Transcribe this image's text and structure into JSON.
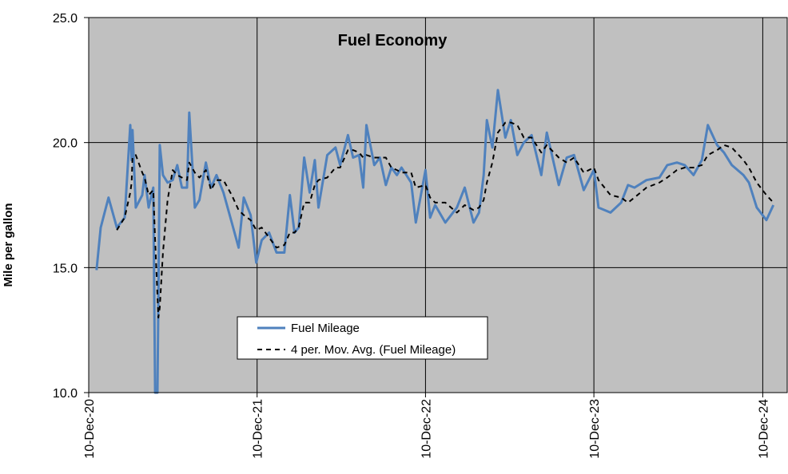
{
  "chart_data": {
    "type": "line",
    "title": "Fuel Economy",
    "ylabel": "Mile per gallon",
    "x": [
      "2020-12-27",
      "2021-01-05",
      "2021-01-22",
      "2021-02-09",
      "2021-02-26",
      "2021-03-10",
      "2021-03-13",
      "2021-03-15",
      "2021-03-22",
      "2021-04-05",
      "2021-04-10",
      "2021-04-19",
      "2021-04-29",
      "2021-05-03",
      "2021-05-08",
      "2021-05-10",
      "2021-05-13",
      "2021-05-20",
      "2021-05-30",
      "2021-06-10",
      "2021-06-20",
      "2021-06-30",
      "2021-07-11",
      "2021-07-16",
      "2021-07-28",
      "2021-08-07",
      "2021-08-21",
      "2021-09-01",
      "2021-09-13",
      "2021-09-28",
      "2021-10-16",
      "2021-10-31",
      "2021-11-11",
      "2021-11-26",
      "2021-12-08",
      "2021-12-20",
      "2022-01-05",
      "2022-01-21",
      "2022-02-07",
      "2022-02-19",
      "2022-03-01",
      "2022-03-10",
      "2022-03-22",
      "2022-04-03",
      "2022-04-14",
      "2022-04-22",
      "2022-05-11",
      "2022-05-29",
      "2022-06-08",
      "2022-06-25",
      "2022-07-06",
      "2022-07-19",
      "2022-07-28",
      "2022-08-04",
      "2022-08-21",
      "2022-09-02",
      "2022-09-15",
      "2022-09-27",
      "2022-10-09",
      "2022-10-19",
      "2022-11-09",
      "2022-11-19",
      "2022-12-10",
      "2022-12-20",
      "2022-12-31",
      "2023-01-22",
      "2023-02-16",
      "2023-03-05",
      "2023-03-24",
      "2023-04-05",
      "2023-04-15",
      "2023-04-22",
      "2023-05-04",
      "2023-05-16",
      "2023-06-01",
      "2023-06-13",
      "2023-06-27",
      "2023-07-11",
      "2023-07-28",
      "2023-08-18",
      "2023-08-30",
      "2023-09-25",
      "2023-10-12",
      "2023-10-28",
      "2023-11-18",
      "2023-12-10",
      "2023-12-20",
      "2024-01-15",
      "2024-02-07",
      "2024-02-22",
      "2024-03-07",
      "2024-04-02",
      "2024-04-30",
      "2024-05-17",
      "2024-06-07",
      "2024-06-24",
      "2024-07-13",
      "2024-07-31",
      "2024-08-13",
      "2024-09-02",
      "2024-09-17",
      "2024-10-04",
      "2024-10-29",
      "2024-11-10",
      "2024-11-27",
      "2024-12-18",
      "2025-01-02"
    ],
    "series": [
      {
        "name": "Fuel Mileage",
        "color": "#4f81bd",
        "values": [
          14.9,
          16.6,
          17.8,
          16.6,
          17.0,
          20.7,
          19.3,
          20.5,
          17.4,
          17.9,
          18.7,
          17.4,
          18.2,
          10.0,
          10.0,
          13.8,
          19.9,
          18.7,
          18.4,
          18.5,
          19.1,
          18.2,
          18.2,
          21.2,
          17.4,
          17.7,
          19.2,
          18.2,
          18.7,
          18.0,
          16.8,
          15.8,
          17.8,
          17.1,
          15.2,
          16.1,
          16.4,
          15.6,
          15.6,
          17.9,
          16.4,
          16.6,
          19.4,
          18.0,
          19.3,
          17.4,
          19.5,
          19.8,
          19.1,
          20.3,
          19.4,
          19.5,
          18.2,
          20.7,
          19.1,
          19.4,
          18.3,
          19.0,
          18.7,
          19.0,
          18.4,
          16.8,
          18.9,
          17.0,
          17.5,
          16.8,
          17.4,
          18.2,
          16.8,
          17.2,
          18.7,
          20.9,
          19.8,
          22.1,
          20.2,
          20.9,
          19.5,
          20.0,
          20.3,
          18.7,
          20.4,
          18.3,
          19.4,
          19.5,
          18.1,
          18.9,
          17.4,
          17.2,
          17.6,
          18.3,
          18.2,
          18.5,
          18.6,
          19.1,
          19.2,
          19.1,
          18.7,
          19.3,
          20.7,
          19.9,
          19.6,
          19.1,
          18.7,
          18.4,
          17.4,
          16.9,
          17.5
        ]
      },
      {
        "name": "4 per. Mov. Avg. (Fuel Mileage)",
        "color": "#000000",
        "dashed": true,
        "values": [
          null,
          null,
          null,
          16.5,
          17.0,
          18.0,
          18.4,
          19.4,
          19.5,
          18.8,
          18.6,
          17.9,
          18.1,
          16.1,
          13.9,
          13.0,
          13.4,
          15.6,
          17.7,
          18.9,
          18.7,
          18.6,
          18.5,
          19.2,
          18.8,
          18.6,
          18.9,
          18.1,
          18.5,
          18.5,
          17.9,
          17.3,
          17.1,
          16.9,
          16.5,
          16.6,
          16.2,
          15.8,
          15.9,
          16.4,
          16.4,
          16.6,
          17.6,
          17.6,
          18.3,
          18.5,
          18.6,
          19.0,
          19.0,
          19.7,
          19.7,
          19.6,
          19.4,
          19.5,
          19.4,
          19.4,
          19.4,
          19.0,
          18.9,
          18.8,
          18.8,
          18.2,
          18.3,
          17.8,
          17.6,
          17.6,
          17.2,
          17.5,
          17.3,
          17.4,
          17.7,
          18.4,
          19.2,
          20.4,
          20.8,
          20.8,
          20.7,
          20.2,
          20.2,
          19.6,
          19.9,
          19.4,
          19.2,
          19.4,
          18.8,
          19.0,
          18.5,
          17.9,
          17.8,
          17.6,
          17.8,
          18.2,
          18.4,
          18.6,
          18.9,
          19.0,
          19.0,
          19.1,
          19.5,
          19.7,
          19.9,
          19.8,
          19.3,
          19.0,
          18.4,
          17.9,
          17.6
        ]
      }
    ],
    "xlim": [
      "2020-12-10",
      "2025-02-01"
    ],
    "xticks": [
      {
        "value": "2020-12-10",
        "label": "10-Dec-20"
      },
      {
        "value": "2021-12-10",
        "label": "10-Dec-21"
      },
      {
        "value": "2022-12-10",
        "label": "10-Dec-22"
      },
      {
        "value": "2023-12-10",
        "label": "10-Dec-23"
      },
      {
        "value": "2024-12-10",
        "label": "10-Dec-24"
      }
    ],
    "ylim": [
      10,
      25
    ],
    "yticks": [
      {
        "value": 10,
        "label": "10.0"
      },
      {
        "value": 15,
        "label": "15.0"
      },
      {
        "value": 20,
        "label": "20.0"
      },
      {
        "value": 25,
        "label": "25.0"
      }
    ],
    "grid": true,
    "background": "#c0c0c0"
  }
}
